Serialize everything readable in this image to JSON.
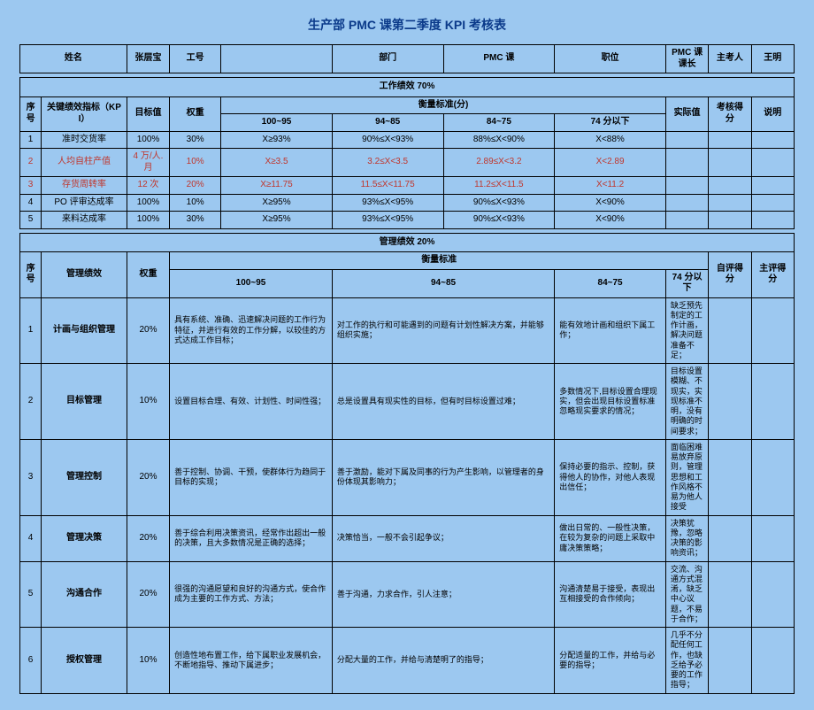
{
  "title": "生产部 PMC 课第二季度 KPI 考核表",
  "hdr": {
    "name_l": "姓名",
    "name_v": "张层宝",
    "id_l": "工号",
    "id_v": "",
    "dept_l": "部门",
    "dept_v": "PMC 课",
    "pos_l": "职位",
    "pos_v": "PMC 课课长",
    "ex_l": "主考人",
    "ex_v": "王明"
  },
  "sec1": {
    "title": "工作绩效 70%",
    "xu": "序号",
    "kpi": "关键绩效指标（KPI）",
    "tgt": "目标值",
    "wt": "权重",
    "std": "衡量标准(分)",
    "l1": "100~95",
    "l2": "94~85",
    "l3": "84~75",
    "l4": "74 分以下",
    "act": "实际值",
    "score": "考核得分",
    "note": "说明",
    "rows": [
      {
        "n": "1",
        "k": "准时交货率",
        "t": "100%",
        "w": "30%",
        "a": "X≥93%",
        "b": "90%≤X<93%",
        "c": "88%≤X<90%",
        "d": "X<88%",
        "red": false
      },
      {
        "n": "2",
        "k": "人均自柱产值",
        "t": "4 万/人. 月",
        "w": "10%",
        "a": "X≥3.5",
        "b": "3.2≤X<3.5",
        "c": "2.89≤X<3.2",
        "d": "X<2.89",
        "red": true
      },
      {
        "n": "3",
        "k": "存货周转率",
        "t": "12 次",
        "w": "20%",
        "a": "X≥11.75",
        "b": "11.5≤X<11.75",
        "c": "11.2≤X<11.5",
        "d": "X<11.2",
        "red": true
      },
      {
        "n": "4",
        "k": "PO 评审达成率",
        "t": "100%",
        "w": "10%",
        "a": "X≥95%",
        "b": "93%≤X<95%",
        "c": "90%≤X<93%",
        "d": "X<90%",
        "red": false
      },
      {
        "n": "5",
        "k": "来料达成率",
        "t": "100%",
        "w": "30%",
        "a": "X≥95%",
        "b": "93%≤X<95%",
        "c": "90%≤X<93%",
        "d": "X<90%",
        "red": false
      }
    ]
  },
  "sec2": {
    "title": "管理绩效 20%",
    "xu": "序号",
    "kpi": "管理绩效",
    "wt": "权重",
    "std": "衡量标准",
    "l1": "100~95",
    "l2": "94~85",
    "l3": "84~75",
    "l4": "74 分以下",
    "self": "自评得分",
    "mgr": "主评得分",
    "rows": [
      {
        "n": "1",
        "k": "计画与组织管理",
        "w": "20%",
        "a": "具有系统、准确、迅速解决问题的工作行为特征，并进行有效的工作分解，以较佳的方式达成工作目标；",
        "b": "对工作的执行和可能遇到的问题有计划性解决方案，并能够组织实施；",
        "c": "能有效地计画和组织下属工作；",
        "d": "缺乏预先制定的工作计画，解决问题准备不足；"
      },
      {
        "n": "2",
        "k": "目标管理",
        "w": "10%",
        "a": "设置目标合理、有效、计划性、时间性强；",
        "b": "总是设置具有现实性的目标，但有时目标设置过难；",
        "c": "多数情况下,目标设置合理现实，但会出现目标设置标准忽略现实要求的情况；",
        "d": "目标设置模糊、不现实，实现标准不明，没有明确的时间要求；"
      },
      {
        "n": "3",
        "k": "管理控制",
        "w": "20%",
        "a": "善于控制、协调、干预，使群体行为趋同于目标的实现；",
        "b": "善于激励，能对下属及同事的行为产生影响，以管理者的身份体现其影响力；",
        "c": "保持必要的指示、控制，获得他人的协作，对他人表现出信任；",
        "d": "面临困难易放弃原则，管理思想和工作风格不易为他人接受"
      },
      {
        "n": "4",
        "k": "管理决策",
        "w": "20%",
        "a": "善于综合利用决策资讯，经常作出超出一般的决策，且大多数情况是正确的选择；",
        "b": "决策恰当，一般不会引起争议；",
        "c": "做出日常的、一般性决策，在较为复杂的问题上采取中庸决策策略；",
        "d": "决策犹豫，忽略决策的影响资讯；"
      },
      {
        "n": "5",
        "k": "沟通合作",
        "w": "20%",
        "a": "很强的沟通愿望和良好的沟通方式，使合作成为主要的工作方式、方法；",
        "b": "善于沟通，力求合作，引人注意；",
        "c": "沟通清楚易于接受，表现出互相接受的合作倾向；",
        "d": "交流、沟通方式混淆，缺乏中心议题，不易于合作；"
      },
      {
        "n": "6",
        "k": "授权管理",
        "w": "10%",
        "a": "创造性地布置工作，给下属职业发展机会，不断地指导、推动下属进步；",
        "b": "分配大量的工作，并给与清楚明了的指导；",
        "c": "分配适量的工作，并给与必要的指导；",
        "d": "几乎不分配任何工作，也缺乏给予必要的工作指导；"
      }
    ]
  },
  "colors": {
    "red": "#c0362c"
  }
}
